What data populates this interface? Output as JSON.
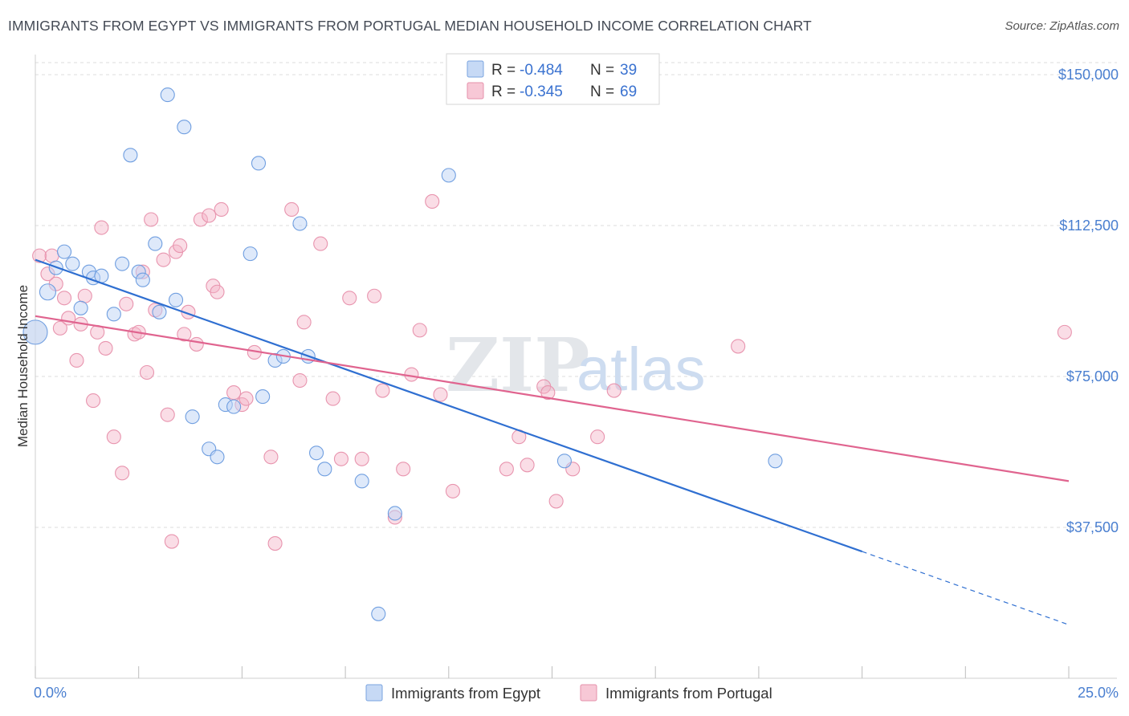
{
  "title": "IMMIGRANTS FROM EGYPT VS IMMIGRANTS FROM PORTUGAL MEDIAN HOUSEHOLD INCOME CORRELATION CHART",
  "source": "Source: ZipAtlas.com",
  "watermark": {
    "zip": "ZIP",
    "atlas": "atlas"
  },
  "legend": [
    {
      "r_label": "R =",
      "r_value": "-0.484",
      "n_label": "N =",
      "n_value": "39"
    },
    {
      "r_label": "R =",
      "r_value": "-0.345",
      "n_label": "N =",
      "n_value": "69"
    }
  ],
  "chart_data": {
    "type": "scatter",
    "title": "IMMIGRANTS FROM EGYPT VS IMMIGRANTS FROM PORTUGAL MEDIAN HOUSEHOLD INCOME CORRELATION CHART",
    "xlabel": "",
    "ylabel": "Median Household Income",
    "xlim": [
      0,
      25
    ],
    "ylim": [
      0,
      153000
    ],
    "x_tick_labels": [
      "0.0%",
      "25.0%"
    ],
    "y_ticks": [
      37500,
      75000,
      112500,
      150000
    ],
    "y_tick_labels": [
      "$37,500",
      "$75,000",
      "$112,500",
      "$150,000"
    ],
    "colors": {
      "egypt": "#6a9be0",
      "portugal": "#e98aa8",
      "egypt_line": "#2f6fd1",
      "portugal_line": "#e0648f"
    },
    "series": [
      {
        "name": "Immigrants from Egypt",
        "r": -0.484,
        "n": 39,
        "trend": {
          "x_start": 0,
          "y_start": 104000,
          "x_solid_end": 20,
          "y_solid_end": 31500,
          "x_end": 25,
          "y_end": 13300
        },
        "points": [
          [
            0.0,
            86000
          ],
          [
            0.3,
            96000
          ],
          [
            0.5,
            102000
          ],
          [
            0.7,
            106000
          ],
          [
            0.9,
            103000
          ],
          [
            1.1,
            92000
          ],
          [
            1.3,
            101000
          ],
          [
            1.4,
            99500
          ],
          [
            1.6,
            100000
          ],
          [
            1.9,
            90500
          ],
          [
            2.1,
            103000
          ],
          [
            2.3,
            130000
          ],
          [
            2.5,
            101000
          ],
          [
            2.6,
            99000
          ],
          [
            2.9,
            108000
          ],
          [
            3.0,
            91000
          ],
          [
            3.2,
            145000
          ],
          [
            3.4,
            94000
          ],
          [
            3.6,
            137000
          ],
          [
            3.8,
            65000
          ],
          [
            4.2,
            57000
          ],
          [
            4.4,
            55000
          ],
          [
            4.6,
            68000
          ],
          [
            4.8,
            67500
          ],
          [
            5.2,
            105500
          ],
          [
            5.4,
            128000
          ],
          [
            5.5,
            70000
          ],
          [
            5.8,
            79000
          ],
          [
            6.0,
            80000
          ],
          [
            6.4,
            113000
          ],
          [
            6.6,
            80000
          ],
          [
            6.8,
            56000
          ],
          [
            7.0,
            52000
          ],
          [
            7.9,
            49000
          ],
          [
            8.3,
            16000
          ],
          [
            8.7,
            41000
          ],
          [
            10.0,
            125000
          ],
          [
            12.8,
            54000
          ],
          [
            17.9,
            54000
          ]
        ]
      },
      {
        "name": "Immigrants from Portugal",
        "r": -0.345,
        "n": 69,
        "trend": {
          "x_start": 0,
          "y_start": 90000,
          "x_end": 25,
          "y_end": 49000
        },
        "points": [
          [
            0.1,
            105000
          ],
          [
            0.3,
            100500
          ],
          [
            0.4,
            105000
          ],
          [
            0.5,
            98000
          ],
          [
            0.6,
            87000
          ],
          [
            0.7,
            94500
          ],
          [
            0.8,
            89500
          ],
          [
            1.0,
            79000
          ],
          [
            1.1,
            88000
          ],
          [
            1.2,
            95000
          ],
          [
            1.4,
            69000
          ],
          [
            1.5,
            86000
          ],
          [
            1.6,
            112000
          ],
          [
            1.7,
            82000
          ],
          [
            1.9,
            60000
          ],
          [
            2.1,
            51000
          ],
          [
            2.2,
            93000
          ],
          [
            2.4,
            85500
          ],
          [
            2.5,
            86000
          ],
          [
            2.6,
            101000
          ],
          [
            2.7,
            76000
          ],
          [
            2.8,
            114000
          ],
          [
            2.9,
            91500
          ],
          [
            3.1,
            104000
          ],
          [
            3.2,
            65500
          ],
          [
            3.3,
            34000
          ],
          [
            3.4,
            106000
          ],
          [
            3.5,
            107500
          ],
          [
            3.6,
            85500
          ],
          [
            3.7,
            91000
          ],
          [
            3.9,
            83000
          ],
          [
            4.0,
            114000
          ],
          [
            4.2,
            115000
          ],
          [
            4.3,
            97500
          ],
          [
            4.4,
            96000
          ],
          [
            4.5,
            116500
          ],
          [
            4.8,
            71000
          ],
          [
            5.0,
            68000
          ],
          [
            5.1,
            69500
          ],
          [
            5.3,
            81000
          ],
          [
            5.7,
            55000
          ],
          [
            5.8,
            33500
          ],
          [
            6.2,
            116500
          ],
          [
            6.4,
            74000
          ],
          [
            6.5,
            88500
          ],
          [
            6.9,
            108000
          ],
          [
            7.2,
            69500
          ],
          [
            7.4,
            54500
          ],
          [
            7.6,
            94500
          ],
          [
            7.9,
            54500
          ],
          [
            8.2,
            95000
          ],
          [
            8.4,
            71500
          ],
          [
            8.7,
            40000
          ],
          [
            8.9,
            52000
          ],
          [
            9.1,
            75500
          ],
          [
            9.3,
            86500
          ],
          [
            9.6,
            118500
          ],
          [
            9.8,
            70500
          ],
          [
            10.1,
            46500
          ],
          [
            11.4,
            52000
          ],
          [
            11.7,
            60000
          ],
          [
            11.9,
            53000
          ],
          [
            12.3,
            72500
          ],
          [
            12.4,
            71000
          ],
          [
            12.6,
            44000
          ],
          [
            13.0,
            52000
          ],
          [
            13.6,
            60000
          ],
          [
            14.0,
            71500
          ],
          [
            17.0,
            82500
          ],
          [
            24.9,
            86000
          ]
        ]
      }
    ]
  }
}
